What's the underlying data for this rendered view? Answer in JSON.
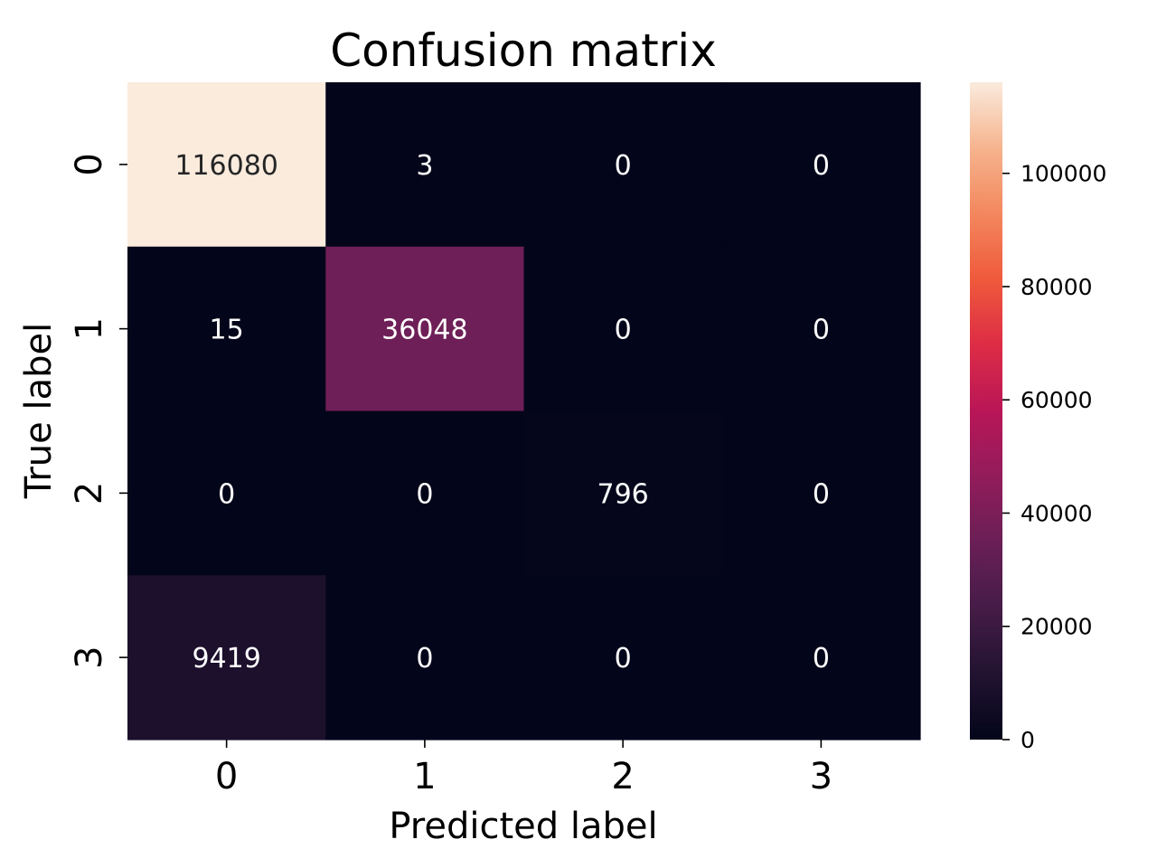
{
  "chart_data": {
    "type": "heatmap",
    "title": "Confusion matrix",
    "xlabel": "Predicted label",
    "ylabel": "True label",
    "x_categories": [
      "0",
      "1",
      "2",
      "3"
    ],
    "y_categories": [
      "0",
      "1",
      "2",
      "3"
    ],
    "values": [
      [
        116080,
        3,
        0,
        0
      ],
      [
        15,
        36048,
        0,
        0
      ],
      [
        0,
        0,
        796,
        0
      ],
      [
        9419,
        0,
        0,
        0
      ]
    ],
    "colorbar": {
      "ticks": [
        0,
        20000,
        40000,
        60000,
        80000,
        100000
      ],
      "tick_labels": [
        "0",
        "20000",
        "40000",
        "60000",
        "80000",
        "100000"
      ],
      "range": [
        0,
        116080
      ]
    },
    "colormap": "rocket",
    "annotation_colors": {
      "on_dark": "#ffffff",
      "on_light": "#262626"
    }
  }
}
